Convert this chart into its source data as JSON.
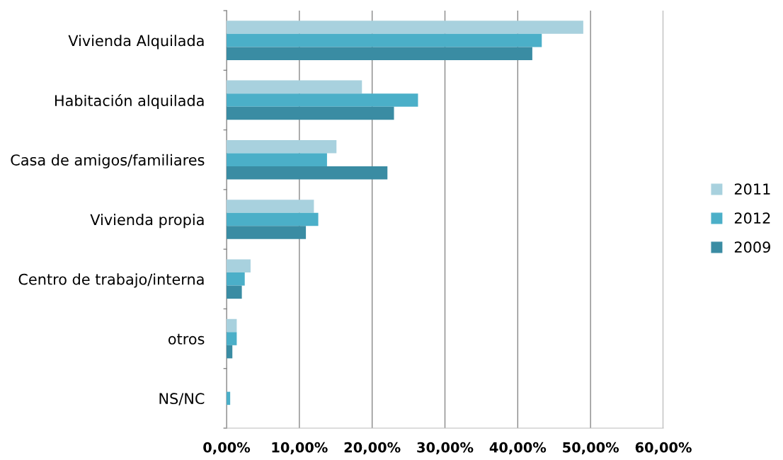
{
  "chart_data": {
    "type": "bar",
    "orientation": "horizontal",
    "categories": [
      "Vivienda Alquilada",
      "Habitación alquilada",
      "Casa de amigos/familiares",
      "Vivienda propia",
      "Centro de trabajo/interna",
      "otros",
      "NS/NC"
    ],
    "series": [
      {
        "name": "2011",
        "color": "#a8d1de",
        "values": [
          49.0,
          18.6,
          15.1,
          12.0,
          3.3,
          1.4,
          null
        ]
      },
      {
        "name": "2012",
        "color": "#4bafc8",
        "values": [
          43.3,
          26.3,
          13.8,
          12.6,
          2.5,
          1.4,
          0.5
        ]
      },
      {
        "name": "2009",
        "color": "#3a8ca3",
        "values": [
          42.0,
          23.0,
          22.1,
          10.9,
          2.1,
          0.8,
          0.0
        ]
      }
    ],
    "xlim": [
      0,
      60
    ],
    "xticks": [
      {
        "value": 0,
        "label": "0,00%"
      },
      {
        "value": 10,
        "label": "10,00%"
      },
      {
        "value": 20,
        "label": "20,00%"
      },
      {
        "value": 30,
        "label": "30,00%"
      },
      {
        "value": 40,
        "label": "40,00%"
      },
      {
        "value": 50,
        "label": "50,00%"
      },
      {
        "value": 60,
        "label": "60,00%"
      }
    ],
    "grid": "x",
    "legend": "right"
  }
}
